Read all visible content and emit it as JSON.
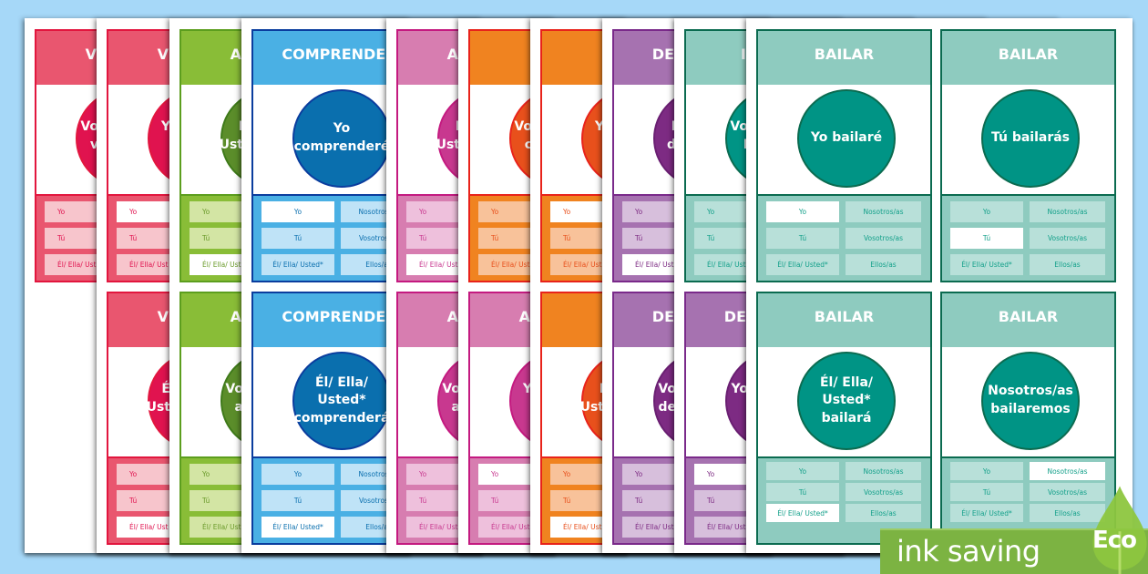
{
  "themes": {
    "red": {
      "header": "#e9566f",
      "border": "#e2163e",
      "circle": "#e0134f",
      "circle_border": "#e2163e",
      "button": "#f7c5cc",
      "text": "#e0134f"
    },
    "green": {
      "header": "#89bd37",
      "border": "#5c9e1e",
      "circle": "#5b8d2a",
      "circle_border": "#3f7a1a",
      "button": "#d3e5a4",
      "text": "#6a9a2a"
    },
    "blue": {
      "header": "#4ab0e4",
      "border": "#0a3d9e",
      "circle": "#0a6fae",
      "circle_border": "#0a3d9e",
      "button": "#bfe3f7",
      "text": "#0a6fae"
    },
    "pink": {
      "header": "#d77db0",
      "border": "#c41a80",
      "circle": "#c8388f",
      "circle_border": "#c41a80",
      "button": "#eec0dc",
      "text": "#c8388f"
    },
    "orange": {
      "header": "#f08320",
      "border": "#e8231a",
      "circle": "#e8501c",
      "circle_border": "#e8231a",
      "button": "#f8c29a",
      "text": "#e8501c"
    },
    "purple": {
      "header": "#a672b0",
      "border": "#7a2a8a",
      "circle": "#7d2b83",
      "circle_border": "#6a1f72",
      "button": "#d7bfdc",
      "text": "#7d2b83"
    },
    "teal": {
      "header": "#8ecbbf",
      "border": "#0b6b50",
      "circle": "#009485",
      "circle_border": "#0b6b50",
      "button": "#b8e0d9",
      "text": "#13a08a"
    }
  },
  "sheets": [
    {
      "cards": [
        {
          "theme": "red",
          "clipped": true,
          "header": "V",
          "circle": "Vo\nv",
          "buttons": [
            "Yo",
            "Tú",
            "Él/ Ella/ Ust"
          ],
          "highlight": -1
        },
        null
      ]
    },
    {
      "cards": [
        {
          "theme": "red",
          "clipped": true,
          "header": "V",
          "circle": "Y",
          "buttons": [
            "Yo",
            "Tú",
            "Él/ Ella/ Ust"
          ],
          "highlight": 0
        },
        {
          "theme": "red",
          "clipped": true,
          "header": "V",
          "circle": "É\nUst",
          "buttons": [
            "Yo",
            "Tú",
            "Él/ Ella/ Ust"
          ],
          "highlight": 2
        }
      ]
    },
    {
      "cards": [
        {
          "theme": "green",
          "clipped": true,
          "header": "A",
          "circle": "I\nUst",
          "buttons": [
            "Yo",
            "Tú",
            "Él/ Ella/ Ust"
          ],
          "highlight": 2
        },
        {
          "theme": "green",
          "clipped": true,
          "header": "A",
          "circle": "Vo\na",
          "buttons": [
            "Yo",
            "Tú",
            "Él/ Ella/ Ust"
          ],
          "highlight": -1
        }
      ]
    },
    {
      "cards": [
        {
          "theme": "blue",
          "clipped": false,
          "header": "COMPRENDER",
          "circle": "Yo\ncomprenderé",
          "buttons": [
            "Yo",
            "Tú",
            "Él/ Ella/ Usted*",
            "Nosotros/as",
            "Vosotros/as",
            "Ellos/as"
          ],
          "highlight": 0
        },
        {
          "theme": "blue",
          "clipped": false,
          "header": "COMPRENDER",
          "circle": "Él/ Ella/\nUsted*\ncomprenderá",
          "buttons": [
            "Yo",
            "Tú",
            "Él/ Ella/ Usted*",
            "Nosotros/as",
            "Vosotros/as",
            "Ellos/as"
          ],
          "highlight": 2
        }
      ]
    },
    {
      "cards": [
        {
          "theme": "pink",
          "clipped": true,
          "header": "A",
          "circle": "I\nUst",
          "buttons": [
            "Yo",
            "Tú",
            "Él/ Ella/ Ust"
          ],
          "highlight": 2
        },
        {
          "theme": "pink",
          "clipped": true,
          "header": "A",
          "circle": "Vo\na",
          "buttons": [
            "Yo",
            "Tú",
            "Él/ Ella/ Ust"
          ],
          "highlight": -1
        }
      ]
    },
    {
      "cards": [
        {
          "theme": "orange",
          "clipped": true,
          "header": "",
          "circle": "Vo\nc",
          "buttons": [
            "Yo",
            "Tú",
            "Él/ Ella/ Ust"
          ],
          "highlight": -1
        },
        {
          "theme": "pink",
          "clipped": true,
          "header": "A",
          "circle": "Y",
          "buttons": [
            "Yo",
            "Tú",
            "Él/ Ella/ Ust"
          ],
          "highlight": 0
        }
      ]
    },
    {
      "cards": [
        {
          "theme": "orange",
          "clipped": true,
          "header": "",
          "circle": "Y",
          "buttons": [
            "Yo",
            "Tú",
            "Él/ Ella/ Ust"
          ],
          "highlight": 0
        },
        {
          "theme": "orange",
          "clipped": true,
          "header": "",
          "circle": "I\nUst",
          "buttons": [
            "Yo",
            "Tú",
            "Él/ Ella/ Ust"
          ],
          "highlight": 2
        }
      ]
    },
    {
      "cards": [
        {
          "theme": "purple",
          "clipped": true,
          "header": "DE",
          "circle": "I\nd",
          "buttons": [
            "Yo",
            "Tú",
            "Él/ Ella/ Ust"
          ],
          "highlight": 2
        },
        {
          "theme": "purple",
          "clipped": true,
          "header": "DE",
          "circle": "Vo\nde",
          "buttons": [
            "Yo",
            "Tú",
            "Él/ Ella/ Ust"
          ],
          "highlight": -1
        }
      ]
    },
    {
      "cards": [
        {
          "theme": "teal",
          "clipped": true,
          "header": "I",
          "circle": "Vo\nI",
          "buttons": [
            "Yo",
            "Tú",
            "Él/ Ella/ Ust"
          ],
          "highlight": -1
        },
        {
          "theme": "purple",
          "clipped": true,
          "header": "DE",
          "circle": "Yo",
          "buttons": [
            "Yo",
            "Tú",
            "Él/ Ella/ Ust"
          ],
          "highlight": 0
        }
      ]
    },
    {
      "cards": [
        {
          "theme": "teal",
          "clipped": false,
          "header": "BAILAR",
          "circle": "Yo bailaré",
          "buttons": [
            "Yo",
            "Tú",
            "Él/ Ella/ Usted*",
            "Nosotros/as",
            "Vosotros/as",
            "Ellos/as"
          ],
          "highlight": 0
        },
        {
          "theme": "teal",
          "clipped": false,
          "header": "BAILAR",
          "circle": "Tú bailarás",
          "buttons": [
            "Yo",
            "Tú",
            "Él/ Ella/ Usted*",
            "Nosotros/as",
            "Vosotros/as",
            "Ellos/as"
          ],
          "highlight": 1
        },
        {
          "theme": "teal",
          "clipped": false,
          "header": "BAILAR",
          "circle": "Él/ Ella/\nUsted* bailará",
          "buttons": [
            "Yo",
            "Tú",
            "Él/ Ella/ Usted*",
            "Nosotros/as",
            "Vosotros/as",
            "Ellos/as"
          ],
          "highlight": 2
        },
        {
          "theme": "teal",
          "clipped": false,
          "header": "BAILAR",
          "circle": "Nosotros/as\nbailaremos",
          "buttons": [
            "Yo",
            "Tú",
            "Él/ Ella/ Usted*",
            "Nosotros/as",
            "Vosotros/as",
            "Ellos/as"
          ],
          "highlight": 3
        }
      ]
    }
  ],
  "eco_badge": {
    "label": "ink saving",
    "drop_label": "Eco",
    "band_color": "#7cb342",
    "drop_color": "#8dc63f"
  }
}
